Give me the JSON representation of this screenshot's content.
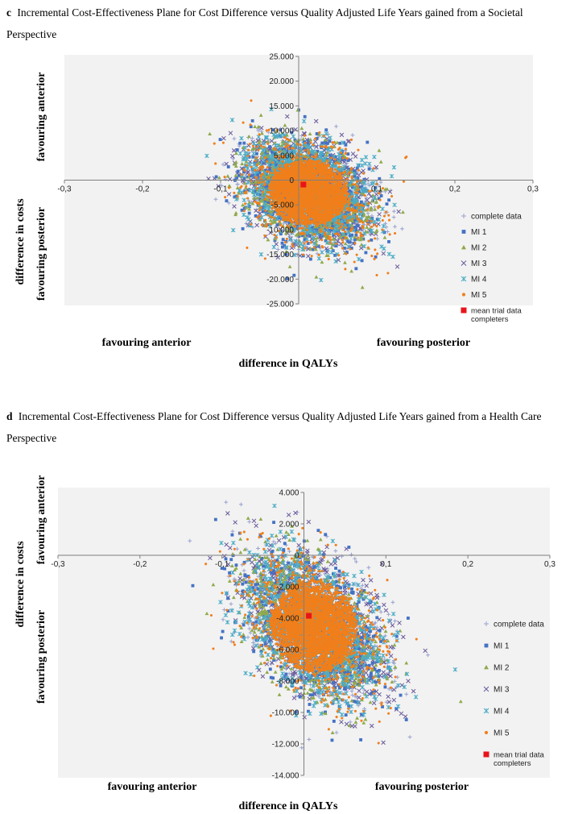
{
  "charts": [
    {
      "letter": "c",
      "caption": "Incremental Cost-Effectiveness Plane for Cost Difference versus Quality Adjusted Life Years gained from a Societal Perspective",
      "y_axis_label": "difference in costs",
      "y_top_label": "favouring anterior",
      "y_bottom_label": "favouring posterior",
      "x_axis_label": "difference in QALYs",
      "x_left_label": "favouring anterior",
      "x_right_label": "favouring posterior"
    },
    {
      "letter": "d",
      "caption": "Incremental Cost-Effectiveness Plane for Cost Difference versus Quality Adjusted Life Years gained from a Health Care Perspective",
      "y_axis_label": "difference in costs",
      "y_top_label": "favouring anterior",
      "y_bottom_label": "favouring posterior",
      "x_axis_label": "difference in QALYs",
      "x_left_label": "favouring anterior",
      "x_right_label": "favouring posterior"
    }
  ],
  "chart_data": [
    {
      "type": "scatter",
      "xlim": [
        -0.3,
        0.3
      ],
      "ylim": [
        -25000,
        25000
      ],
      "x_ticks": [
        "-0,3",
        "-0,2",
        "-0,1",
        "0",
        "0,1",
        "0,2",
        "0,3"
      ],
      "y_ticks": [
        "-25.000",
        "-20.000",
        "-15.000",
        "-10.000",
        "-5.000",
        "0",
        "5.000",
        "10.000",
        "15.000",
        "20.000",
        "25.000"
      ],
      "legend_position": "right",
      "grid": false,
      "cloud": {
        "mean_x": 0.012,
        "mean_y": -2500,
        "sd_x": 0.04,
        "sd_y": 5200,
        "correlation": -0.3
      },
      "series": [
        {
          "name": "complete data",
          "marker": "plus",
          "color": "#9aa3cf"
        },
        {
          "name": "MI 1",
          "marker": "square",
          "color": "#4472c4"
        },
        {
          "name": "MI 2",
          "marker": "triangle",
          "color": "#8faa4b"
        },
        {
          "name": "MI 3",
          "marker": "x",
          "color": "#6a5a9a"
        },
        {
          "name": "MI 4",
          "marker": "star",
          "color": "#4bacc6"
        },
        {
          "name": "MI 5",
          "marker": "dot",
          "color": "#f07f1b"
        },
        {
          "name": "mean trial data completers",
          "marker": "bigsquare",
          "color": "#e8141b",
          "x": [
            0.006
          ],
          "y": [
            -900
          ]
        }
      ]
    },
    {
      "type": "scatter",
      "xlim": [
        -0.3,
        0.3
      ],
      "ylim": [
        -14000,
        4000
      ],
      "x_ticks": [
        "-0,3",
        "-0,2",
        "-0,1",
        "0",
        "0,1",
        "0,2",
        "0,3"
      ],
      "y_ticks": [
        "-14.000",
        "-12.000",
        "-10.000",
        "-8.000",
        "-6.000",
        "-4.000",
        "-2.000",
        "0",
        "2.000",
        "4.000"
      ],
      "legend_position": "right",
      "grid": false,
      "cloud": {
        "mean_x": 0.012,
        "mean_y": -4500,
        "sd_x": 0.042,
        "sd_y": 2300,
        "correlation": -0.45
      },
      "series": [
        {
          "name": "complete data",
          "marker": "plus",
          "color": "#9aa3cf"
        },
        {
          "name": "MI 1",
          "marker": "square",
          "color": "#4472c4"
        },
        {
          "name": "MI 2",
          "marker": "triangle",
          "color": "#8faa4b"
        },
        {
          "name": "MI 3",
          "marker": "x",
          "color": "#6a5a9a"
        },
        {
          "name": "MI 4",
          "marker": "star",
          "color": "#4bacc6"
        },
        {
          "name": "MI 5",
          "marker": "dot",
          "color": "#f07f1b"
        },
        {
          "name": "mean trial data completers",
          "marker": "bigsquare",
          "color": "#e8141b",
          "x": [
            0.006
          ],
          "y": [
            -3850
          ]
        }
      ]
    }
  ]
}
